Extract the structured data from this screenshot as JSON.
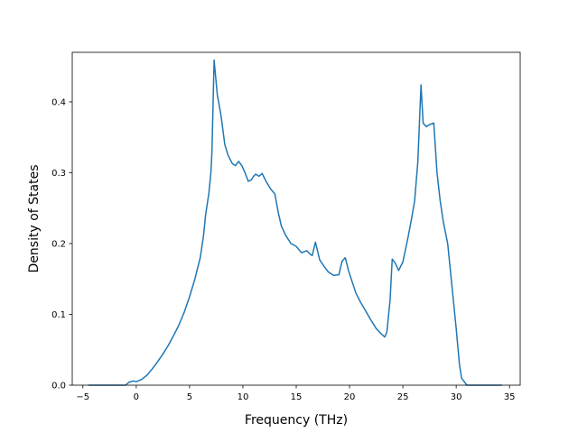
{
  "chart_data": {
    "type": "line",
    "title": "",
    "xlabel": "Frequency (THz)",
    "ylabel": "Density of States",
    "xlim": [
      -6.0,
      36.0
    ],
    "ylim": [
      0.0,
      0.47
    ],
    "xticks": [
      -5,
      0,
      5,
      10,
      15,
      20,
      25,
      30,
      35
    ],
    "xtick_labels": [
      "−5",
      "0",
      "5",
      "10",
      "15",
      "20",
      "25",
      "30",
      "35"
    ],
    "yticks": [
      0.0,
      0.1,
      0.2,
      0.3,
      0.4
    ],
    "ytick_labels": [
      "0.0",
      "0.1",
      "0.2",
      "0.3",
      "0.4"
    ],
    "grid": false,
    "series": [
      {
        "color": "#1f77b4",
        "x": [
          -4.5,
          -1.0,
          -0.7,
          -0.3,
          0.0,
          0.5,
          1.0,
          1.5,
          2.0,
          2.5,
          3.0,
          3.5,
          4.0,
          4.5,
          5.0,
          5.5,
          6.0,
          6.3,
          6.5,
          6.8,
          7.0,
          7.1,
          7.3,
          7.6,
          7.9,
          8.0,
          8.3,
          8.6,
          9.0,
          9.3,
          9.6,
          9.9,
          10.2,
          10.5,
          10.8,
          11.0,
          11.2,
          11.5,
          11.8,
          12.2,
          12.6,
          13.0,
          13.3,
          13.6,
          14.0,
          14.5,
          15.0,
          15.5,
          16.0,
          16.3,
          16.5,
          16.8,
          17.2,
          17.6,
          18.0,
          18.5,
          19.0,
          19.3,
          19.6,
          19.9,
          20.2,
          20.6,
          21.0,
          21.5,
          22.0,
          22.5,
          23.0,
          23.3,
          23.5,
          23.8,
          24.0,
          24.3,
          24.6,
          25.0,
          25.5,
          25.8,
          26.1,
          26.4,
          26.7,
          26.9,
          27.2,
          27.5,
          27.9,
          28.2,
          28.5,
          28.8,
          29.2,
          29.6,
          30.0,
          30.3,
          30.5,
          30.8,
          31.0,
          31.5,
          32.0,
          33.0,
          34.3
        ],
        "y": [
          0.0,
          0.0,
          0.004,
          0.006,
          0.005,
          0.008,
          0.014,
          0.023,
          0.033,
          0.044,
          0.056,
          0.07,
          0.085,
          0.103,
          0.125,
          0.15,
          0.18,
          0.21,
          0.24,
          0.27,
          0.3,
          0.33,
          0.459,
          0.41,
          0.385,
          0.375,
          0.34,
          0.325,
          0.313,
          0.31,
          0.316,
          0.31,
          0.3,
          0.288,
          0.29,
          0.295,
          0.298,
          0.295,
          0.299,
          0.287,
          0.277,
          0.27,
          0.245,
          0.225,
          0.212,
          0.2,
          0.196,
          0.187,
          0.19,
          0.185,
          0.183,
          0.202,
          0.177,
          0.168,
          0.16,
          0.155,
          0.156,
          0.175,
          0.18,
          0.162,
          0.148,
          0.13,
          0.118,
          0.105,
          0.092,
          0.08,
          0.072,
          0.068,
          0.075,
          0.12,
          0.178,
          0.172,
          0.162,
          0.174,
          0.21,
          0.234,
          0.26,
          0.315,
          0.424,
          0.37,
          0.365,
          0.368,
          0.37,
          0.3,
          0.26,
          0.23,
          0.2,
          0.14,
          0.08,
          0.03,
          0.01,
          0.004,
          0.0,
          0.0,
          0.0,
          0.0,
          0.0
        ]
      }
    ]
  }
}
